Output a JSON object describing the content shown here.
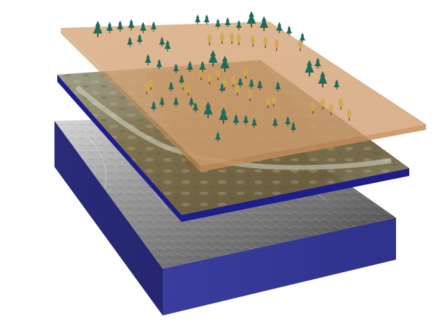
{
  "scene": {
    "background": "#ffffff",
    "layers": [
      {
        "id": "vegetation",
        "surface_color": "#d9a877",
        "edge_color": "#c48d5c",
        "opacity": 0.82,
        "texture": "trees"
      },
      {
        "id": "land-cover",
        "surface_color": "#7d6d43",
        "edge_color": "#1e1e8a",
        "opacity": 0.92,
        "texture": "terrain-texture"
      },
      {
        "id": "elevation",
        "surface_color": "#8a8a8a",
        "edge_color": "#2a2a86",
        "opacity": 1,
        "texture": "grayscale-relief"
      }
    ],
    "colors": {
      "block_side_left": "#2b2c7c",
      "block_side_front": "#353899",
      "tree_conifer": "#1f6b5b",
      "tree_deciduous": "#cfa64e",
      "trunk": "#6b4a2a"
    }
  }
}
